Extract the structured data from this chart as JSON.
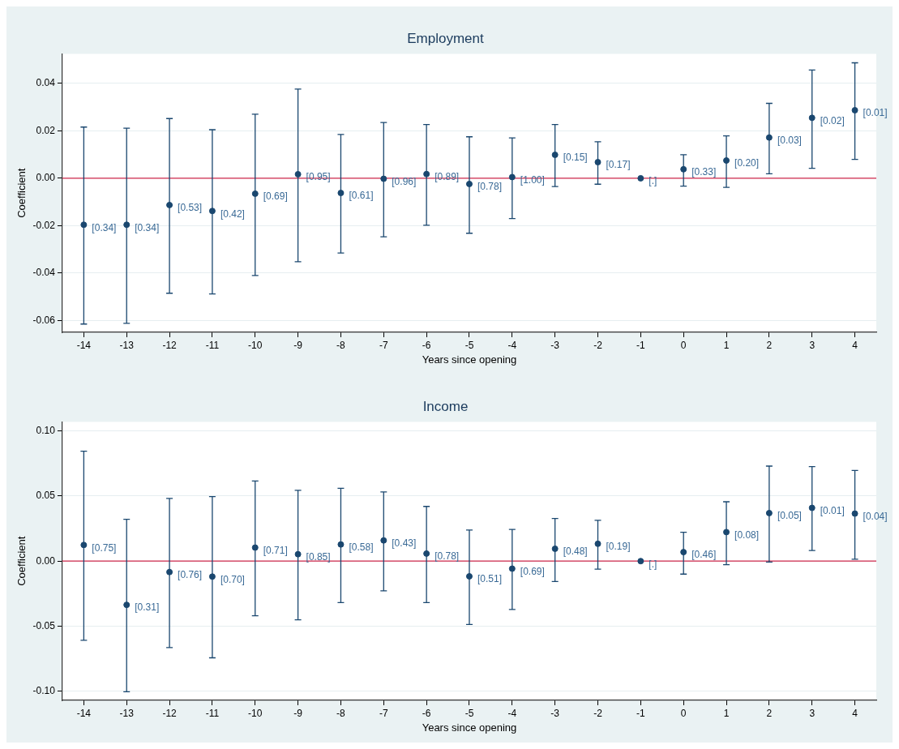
{
  "chart_data": [
    {
      "type": "scatter",
      "title": "Employment",
      "xlabel": "Years since opening",
      "ylabel": "Coefficient",
      "color": "#1a476f",
      "marker": "circle",
      "grid": "y",
      "x": [
        -14,
        -13,
        -12,
        -11,
        -10,
        -9,
        -8,
        -7,
        -6,
        -5,
        -4,
        -3,
        -2,
        -1,
        0,
        1,
        2,
        3,
        4
      ],
      "values": [
        -0.0196,
        -0.0196,
        -0.0113,
        -0.0138,
        -0.0065,
        0.0017,
        -0.0062,
        -0.0002,
        0.0018,
        -0.0024,
        0.0005,
        0.0099,
        0.0068,
        0,
        0.0038,
        0.0075,
        0.0172,
        0.0255,
        0.0287
      ],
      "errors": [
        [
          -0.0615,
          0.0216
        ],
        [
          -0.0612,
          0.0211
        ],
        [
          -0.0485,
          0.0252
        ],
        [
          -0.0488,
          0.0205
        ],
        [
          -0.041,
          0.027
        ],
        [
          -0.0352,
          0.0376
        ],
        [
          -0.0315,
          0.0185
        ],
        [
          -0.0247,
          0.0235
        ],
        [
          -0.0198,
          0.0227
        ],
        [
          -0.0232,
          0.0175
        ],
        [
          -0.017,
          0.017
        ],
        [
          -0.0035,
          0.0227
        ],
        [
          -0.0025,
          0.0154
        ],
        null,
        [
          -0.0033,
          0.0099
        ],
        [
          -0.0038,
          0.0179
        ],
        [
          0.0019,
          0.0316
        ],
        [
          0.0042,
          0.0457
        ],
        [
          0.008,
          0.0487
        ]
      ],
      "annotations": [
        {
          "text": "[0.34]",
          "x": -14,
          "y": -0.0196
        },
        {
          "text": "[0.34]",
          "x": -13,
          "y": -0.0196
        },
        {
          "text": "[0.53]",
          "x": -12,
          "y": -0.0113
        },
        {
          "text": "[0.42]",
          "x": -11,
          "y": -0.0138
        },
        {
          "text": "[0.69]",
          "x": -10,
          "y": -0.0065
        },
        {
          "text": "[0.95]",
          "x": -9,
          "y": 0.0017
        },
        {
          "text": "[0.61]",
          "x": -8,
          "y": -0.0062
        },
        {
          "text": "[0.96]",
          "x": -7,
          "y": -0.0002
        },
        {
          "text": "[0.89]",
          "x": -6,
          "y": 0.0018
        },
        {
          "text": "[0.78]",
          "x": -5,
          "y": -0.0024
        },
        {
          "text": "[1.00]",
          "x": -4,
          "y": 0.0005
        },
        {
          "text": "[0.15]",
          "x": -3,
          "y": 0.0099
        },
        {
          "text": "[0.17]",
          "x": -2,
          "y": 0.0068
        },
        {
          "text": "[.]",
          "x": -1,
          "y": 0
        },
        {
          "text": "[0.33]",
          "x": 0,
          "y": 0.0038
        },
        {
          "text": "[0.20]",
          "x": 1,
          "y": 0.0075
        },
        {
          "text": "[0.03]",
          "x": 2,
          "y": 0.0172
        },
        {
          "text": "[0.02]",
          "x": 3,
          "y": 0.0255
        },
        {
          "text": "[0.01]",
          "x": 4,
          "y": 0.0287
        }
      ],
      "ref_lines": [
        {
          "axis": "y",
          "value": 0,
          "color": "#d0284c"
        }
      ],
      "xlim": [
        -14.5,
        4.5
      ],
      "xticks": [
        -14,
        -13,
        -12,
        -11,
        -10,
        -9,
        -8,
        -7,
        -6,
        -5,
        -4,
        -3,
        -2,
        -1,
        0,
        1,
        2,
        3,
        4
      ],
      "ylim": [
        -0.065,
        0.0525
      ],
      "yticks": [
        -0.06,
        -0.04,
        -0.02,
        {
          "value": 0,
          "label": "0.00"
        },
        0.02,
        0.04
      ]
    },
    {
      "type": "scatter",
      "title": "Income",
      "xlabel": "Years since opening",
      "ylabel": "Coefficient",
      "color": "#1a476f",
      "marker": "circle",
      "grid": "y",
      "x": [
        -14,
        -13,
        -12,
        -11,
        -10,
        -9,
        -8,
        -7,
        -6,
        -5,
        -4,
        -3,
        -2,
        -1,
        0,
        1,
        2,
        3,
        4
      ],
      "values": [
        0.0124,
        -0.0336,
        -0.0084,
        -0.0119,
        0.0104,
        0.0053,
        0.0128,
        0.0159,
        0.0058,
        -0.0117,
        -0.0058,
        0.0095,
        0.0133,
        0,
        0.0069,
        0.0223,
        0.0369,
        0.0409,
        0.0365
      ],
      "errors": [
        [
          -0.0608,
          0.0845
        ],
        [
          -0.1004,
          0.0321
        ],
        [
          -0.0664,
          0.0482
        ],
        [
          -0.0743,
          0.0496
        ],
        [
          -0.042,
          0.0615
        ],
        [
          -0.0451,
          0.0544
        ],
        [
          -0.0319,
          0.056
        ],
        [
          -0.0228,
          0.0531
        ],
        [
          -0.0319,
          0.042
        ],
        [
          -0.0487,
          0.0239
        ],
        [
          -0.0372,
          0.0243
        ],
        [
          -0.0157,
          0.0327
        ],
        [
          -0.0062,
          0.0314
        ],
        null,
        [
          -0.01,
          0.0221
        ],
        [
          -0.0027,
          0.0456
        ],
        [
          -0.0007,
          0.073
        ],
        [
          0.0082,
          0.0726
        ],
        [
          0.0015,
          0.0697
        ]
      ],
      "annotations": [
        {
          "text": "[0.75]",
          "x": -14,
          "y": 0.0124
        },
        {
          "text": "[0.31]",
          "x": -13,
          "y": -0.0336
        },
        {
          "text": "[0.76]",
          "x": -12,
          "y": -0.0084
        },
        {
          "text": "[0.70]",
          "x": -11,
          "y": -0.0119
        },
        {
          "text": "[0.71]",
          "x": -10,
          "y": 0.0104
        },
        {
          "text": "[0.85]",
          "x": -9,
          "y": 0.0053
        },
        {
          "text": "[0.58]",
          "x": -8,
          "y": 0.0128
        },
        {
          "text": "[0.43]",
          "x": -7,
          "y": 0.0159
        },
        {
          "text": "[0.78]",
          "x": -6,
          "y": 0.0058
        },
        {
          "text": "[0.51]",
          "x": -5,
          "y": -0.0117
        },
        {
          "text": "[0.69]",
          "x": -4,
          "y": -0.0058
        },
        {
          "text": "[0.48]",
          "x": -3,
          "y": 0.0095
        },
        {
          "text": "[0.19]",
          "x": -2,
          "y": 0.0133
        },
        {
          "text": "[.]",
          "x": -1,
          "y": 0
        },
        {
          "text": "[0.46]",
          "x": 0,
          "y": 0.0069
        },
        {
          "text": "[0.08]",
          "x": 1,
          "y": 0.0223
        },
        {
          "text": "[0.05]",
          "x": 2,
          "y": 0.0369
        },
        {
          "text": "[0.01]",
          "x": 3,
          "y": 0.0409
        },
        {
          "text": "[0.04]",
          "x": 4,
          "y": 0.0365
        }
      ],
      "ref_lines": [
        {
          "axis": "y",
          "value": 0,
          "color": "#d0284c"
        }
      ],
      "xlim": [
        -14.5,
        4.5
      ],
      "xticks": [
        -14,
        -13,
        -12,
        -11,
        -10,
        -9,
        -8,
        -7,
        -6,
        -5,
        -4,
        -3,
        -2,
        -1,
        0,
        1,
        2,
        3,
        4
      ],
      "ylim": [
        -0.107,
        0.107
      ],
      "yticks": [
        {
          "value": -0.1,
          "label": "-0.10"
        },
        -0.05,
        {
          "value": 0,
          "label": "0.00"
        },
        0.05,
        {
          "value": 0.1,
          "label": "0.10"
        }
      ]
    }
  ]
}
